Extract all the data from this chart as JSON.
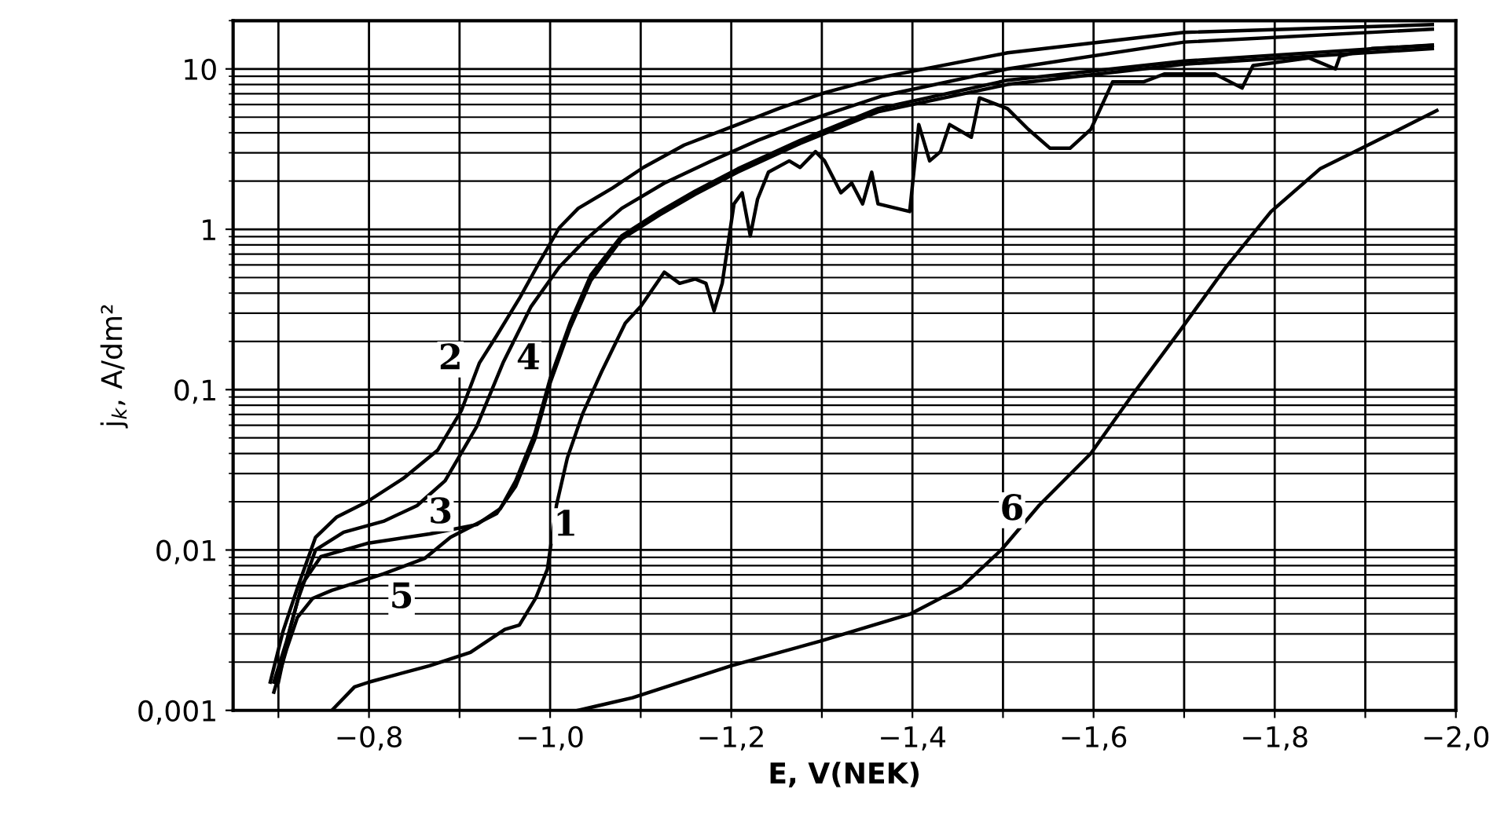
{
  "chart_data": {
    "type": "line",
    "xlabel": "E, V(NEK)",
    "ylabel": "j$_{k}$, A/dm²",
    "log": "y",
    "grid": true,
    "legend": false,
    "marker": "none",
    "line_style": "solid",
    "xlim": [
      -0.65,
      -2.0
    ],
    "ylim": [
      0.001,
      20
    ],
    "xticks": [
      {
        "value": -0.7,
        "label": null
      },
      {
        "value": -0.8,
        "label": "−0,8"
      },
      {
        "value": -0.9,
        "label": null
      },
      {
        "value": -1.0,
        "label": "−1,0"
      },
      {
        "value": -1.1,
        "label": null
      },
      {
        "value": -1.2,
        "label": "−1,2"
      },
      {
        "value": -1.3,
        "label": null
      },
      {
        "value": -1.4,
        "label": "−1,4"
      },
      {
        "value": -1.5,
        "label": null
      },
      {
        "value": -1.6,
        "label": "−1,6"
      },
      {
        "value": -1.7,
        "label": null
      },
      {
        "value": -1.8,
        "label": "−1,8"
      },
      {
        "value": -1.9,
        "label": null
      },
      {
        "value": -2.0,
        "label": "−2,0"
      }
    ],
    "yticks": [
      {
        "value": 0.001,
        "label": "0,001"
      },
      {
        "value": 0.01,
        "label": "0,01"
      },
      {
        "value": 0.1,
        "label": "0,1"
      },
      1,
      10
    ],
    "series": [
      {
        "color": "#000000",
        "x": [
          -0.759,
          -0.784,
          -0.8,
          -0.867,
          -0.912,
          -0.95,
          -0.966,
          -0.984,
          -0.997,
          -1.002,
          -1.007,
          -1.019,
          -1.036,
          -1.057,
          -1.083,
          -1.1,
          -1.126,
          -1.143,
          -1.16,
          -1.172,
          -1.181,
          -1.19,
          -1.203,
          -1.212,
          -1.221,
          -1.229,
          -1.241,
          -1.264,
          -1.276,
          -1.293,
          -1.303,
          -1.321,
          -1.333,
          -1.345,
          -1.355,
          -1.362,
          -1.397,
          -1.407,
          -1.419,
          -1.431,
          -1.441,
          -1.465,
          -1.474,
          -1.505,
          -1.528,
          -1.552,
          -1.574,
          -1.597,
          -1.621,
          -1.655,
          -1.678,
          -1.734,
          -1.764,
          -1.776,
          -1.838,
          -1.867,
          -1.872,
          -1.907,
          -1.974
        ],
        "values": [
          0.001,
          0.0014,
          0.0015,
          0.0019,
          0.0023,
          0.0032,
          0.0034,
          0.005,
          0.0076,
          0.012,
          0.019,
          0.0375,
          0.071,
          0.13,
          0.26,
          0.33,
          0.54,
          0.46,
          0.49,
          0.46,
          0.31,
          0.46,
          1.44,
          1.69,
          0.91,
          1.54,
          2.27,
          2.67,
          2.43,
          3.05,
          2.67,
          1.69,
          1.94,
          1.44,
          2.27,
          1.44,
          1.29,
          4.5,
          2.67,
          3.05,
          4.5,
          3.75,
          6.6,
          5.65,
          4.2,
          3.2,
          3.2,
          4.2,
          8.3,
          8.3,
          9.3,
          9.3,
          7.6,
          10.5,
          11.7,
          10,
          12,
          13.4,
          14
        ]
      },
      {
        "color": "#000000",
        "x": [
          -0.691,
          -0.705,
          -0.721,
          -0.741,
          -0.764,
          -0.798,
          -0.838,
          -0.876,
          -0.902,
          -0.922,
          -0.941,
          -0.966,
          -0.988,
          -1.01,
          -1.031,
          -1.069,
          -1.103,
          -1.148,
          -1.207,
          -1.252,
          -1.303,
          -1.367,
          -1.505,
          -1.7,
          -1.974
        ],
        "values": [
          0.0015,
          0.0031,
          0.0058,
          0.012,
          0.016,
          0.02,
          0.028,
          0.042,
          0.074,
          0.147,
          0.217,
          0.37,
          0.62,
          1.02,
          1.35,
          1.81,
          2.43,
          3.35,
          4.5,
          5.65,
          7.1,
          8.9,
          12.6,
          16.9,
          18.9
        ]
      },
      {
        "color": "#000000",
        "x": [
          -0.7,
          -0.712,
          -0.726,
          -0.747,
          -0.798,
          -0.867,
          -0.919,
          -0.945,
          -0.962,
          -0.983,
          -1.0,
          -1.022,
          -1.045,
          -1.079,
          -1.121,
          -1.16,
          -1.207,
          -1.276,
          -1.362,
          -1.505,
          -1.7,
          -1.974
        ],
        "values": [
          0.0015,
          0.0031,
          0.0061,
          0.0091,
          0.011,
          0.0126,
          0.0144,
          0.0181,
          0.027,
          0.053,
          0.117,
          0.26,
          0.52,
          0.91,
          1.29,
          1.73,
          2.38,
          3.58,
          5.65,
          8.5,
          11.2,
          14.1
        ]
      },
      {
        "color": "#000000",
        "x": [
          -0.695,
          -0.709,
          -0.722,
          -0.741,
          -0.772,
          -0.816,
          -0.853,
          -0.884,
          -0.919,
          -0.948,
          -0.979,
          -1.01,
          -1.04,
          -1.079,
          -1.126,
          -1.178,
          -1.229,
          -1.298,
          -1.367,
          -1.505,
          -1.7,
          -1.974
        ],
        "values": [
          0.0015,
          0.0027,
          0.005,
          0.01,
          0.0129,
          0.0151,
          0.0189,
          0.027,
          0.059,
          0.147,
          0.33,
          0.58,
          0.87,
          1.35,
          1.94,
          2.67,
          3.58,
          5.05,
          6.8,
          10,
          14.7,
          17.7
        ]
      },
      {
        "color": "#000000",
        "x": [
          -0.695,
          -0.709,
          -0.721,
          -0.738,
          -0.759,
          -0.816,
          -0.862,
          -0.89,
          -0.914,
          -0.941,
          -0.962,
          -0.983,
          -1.0,
          -1.022,
          -1.045,
          -1.079,
          -1.121,
          -1.16,
          -1.207,
          -1.276,
          -1.362,
          -1.505,
          -1.7,
          -1.974
        ],
        "values": [
          0.0013,
          0.0024,
          0.0038,
          0.005,
          0.0056,
          0.0071,
          0.0089,
          0.012,
          0.0141,
          0.0169,
          0.025,
          0.049,
          0.11,
          0.243,
          0.48,
          0.87,
          1.23,
          1.65,
          2.27,
          3.43,
          5.4,
          8.0,
          10.7,
          13.4
        ]
      },
      {
        "color": "#000000",
        "x": [
          -1.031,
          -1.091,
          -1.2,
          -1.298,
          -1.398,
          -1.453,
          -1.498,
          -1.54,
          -1.597,
          -1.643,
          -1.697,
          -1.746,
          -1.796,
          -1.85,
          -1.896,
          -1.979
        ],
        "values": [
          0.001,
          0.0012,
          0.0019,
          0.0027,
          0.004,
          0.0058,
          0.01,
          0.019,
          0.04,
          0.093,
          0.24,
          0.58,
          1.29,
          2.38,
          3.2,
          5.5
        ]
      }
    ],
    "annotations": [
      {
        "text": "1",
        "x": -1.017,
        "y": 0.0141
      },
      {
        "text": "2",
        "x": -0.89,
        "y": 0.154
      },
      {
        "text": "3",
        "x": -0.879,
        "y": 0.0169
      },
      {
        "text": "4",
        "x": -0.976,
        "y": 0.154
      },
      {
        "text": "5",
        "x": -0.836,
        "y": 0.005
      },
      {
        "text": "6",
        "x": -1.51,
        "y": 0.0177
      }
    ]
  }
}
